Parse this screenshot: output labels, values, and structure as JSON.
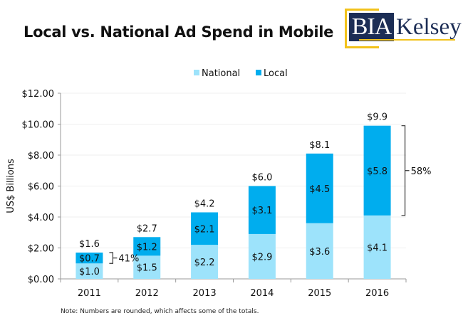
{
  "title": "Local vs. National Ad Spend in Mobile",
  "logo": {
    "left_text": "BIA",
    "right_text": "Kelsey"
  },
  "note": "Note: Numbers are rounded, which affects some of the totals.",
  "colors": {
    "national": "#9de3fb",
    "local": "#00adee",
    "axis": "#9a9a9a",
    "grid": "#efefef"
  },
  "chart_data": {
    "type": "bar",
    "stacked": true,
    "title": "Local vs. National Ad Spend in Mobile",
    "xlabel": "",
    "ylabel": "US$ Billions",
    "ylim": [
      0,
      12
    ],
    "yticks": [
      0,
      2,
      4,
      6,
      8,
      10,
      12
    ],
    "ytick_labels": [
      "$0.00",
      "$2.00",
      "$4.00",
      "$6.00",
      "$8.00",
      "$10.00",
      "$12.00"
    ],
    "grid": true,
    "legend": {
      "placement": "top-center",
      "entries": [
        "National",
        "Local"
      ]
    },
    "categories": [
      "2011",
      "2012",
      "2013",
      "2014",
      "2015",
      "2016"
    ],
    "series": [
      {
        "name": "National",
        "values": [
          1.0,
          1.5,
          2.2,
          2.9,
          3.6,
          4.1
        ],
        "labels": [
          "$1.0",
          "$1.5",
          "$2.2",
          "$2.9",
          "$3.6",
          "$4.1"
        ]
      },
      {
        "name": "Local",
        "values": [
          0.7,
          1.2,
          2.1,
          3.1,
          4.5,
          5.8
        ],
        "labels": [
          "$0.7",
          "$1.2",
          "$2.1",
          "$3.1",
          "$4.5",
          "$5.8"
        ]
      }
    ],
    "totals": [
      1.6,
      2.7,
      4.2,
      6.0,
      8.1,
      9.9
    ],
    "total_labels": [
      "$1.6",
      "$2.7",
      "$4.2",
      "$6.0",
      "$8.1",
      "$9.9"
    ],
    "annotations": [
      {
        "category": "2011",
        "text": "41%",
        "spans": "Local"
      },
      {
        "category": "2016",
        "text": "58%",
        "spans": "Local"
      }
    ]
  }
}
